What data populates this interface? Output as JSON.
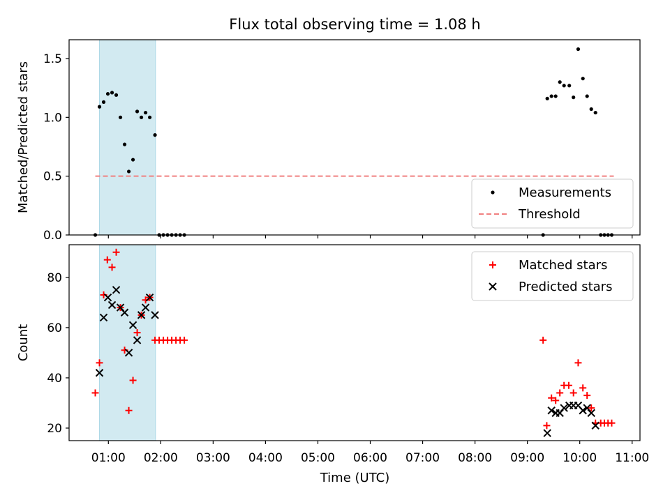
{
  "chart_data": {
    "title": "Flux total observing time = 1.08 h",
    "xlabel": "Time (UTC)",
    "x_unit": "hours UTC",
    "xlim": [
      0.25,
      11.15
    ],
    "xticks": [
      1,
      2,
      3,
      4,
      5,
      6,
      7,
      8,
      9,
      10,
      11
    ],
    "xtick_labels": [
      "01:00",
      "02:00",
      "03:00",
      "04:00",
      "05:00",
      "06:00",
      "07:00",
      "08:00",
      "09:00",
      "10:00",
      "11:00"
    ],
    "highlight_span": [
      0.83,
      1.9
    ],
    "highlight_color": "#add8e6",
    "panels": [
      {
        "type": "scatter",
        "ylabel": "Matched/Predicted stars",
        "ylim": [
          0,
          1.66
        ],
        "yticks": [
          0.0,
          0.5,
          1.0,
          1.5
        ],
        "ytick_labels": [
          "0.0",
          "0.5",
          "1.0",
          "1.5"
        ],
        "legend_position": "bottom-right",
        "threshold": {
          "name": "Threshold",
          "y": 0.5,
          "x": [
            0.75,
            10.65
          ],
          "color": "#f08080"
        },
        "series": [
          {
            "name": "Measurements",
            "marker": "dot",
            "color": "#000000",
            "points": [
              [
                0.75,
                0.0
              ],
              [
                0.83,
                1.09
              ],
              [
                0.91,
                1.13
              ],
              [
                0.99,
                1.2
              ],
              [
                1.07,
                1.21
              ],
              [
                1.15,
                1.19
              ],
              [
                1.23,
                1.0
              ],
              [
                1.31,
                0.77
              ],
              [
                1.39,
                0.54
              ],
              [
                1.47,
                0.64
              ],
              [
                1.55,
                1.05
              ],
              [
                1.63,
                1.0
              ],
              [
                1.71,
                1.04
              ],
              [
                1.79,
                1.0
              ],
              [
                1.89,
                0.85
              ],
              [
                1.97,
                0.0
              ],
              [
                2.05,
                0.0
              ],
              [
                2.13,
                0.0
              ],
              [
                2.21,
                0.0
              ],
              [
                2.29,
                0.0
              ],
              [
                2.37,
                0.0
              ],
              [
                2.45,
                0.0
              ],
              [
                9.3,
                0.0
              ],
              [
                9.38,
                1.16
              ],
              [
                9.46,
                1.18
              ],
              [
                9.54,
                1.18
              ],
              [
                9.62,
                1.3
              ],
              [
                9.7,
                1.27
              ],
              [
                9.8,
                1.27
              ],
              [
                9.88,
                1.17
              ],
              [
                9.97,
                1.58
              ],
              [
                10.06,
                1.33
              ],
              [
                10.14,
                1.18
              ],
              [
                10.22,
                1.07
              ],
              [
                10.3,
                1.04
              ],
              [
                10.4,
                0.0
              ],
              [
                10.47,
                0.0
              ],
              [
                10.54,
                0.0
              ],
              [
                10.61,
                0.0
              ]
            ]
          }
        ]
      },
      {
        "type": "scatter",
        "ylabel": "Count",
        "ylim": [
          15,
          93
        ],
        "yticks": [
          20,
          40,
          60,
          80
        ],
        "ytick_labels": [
          "20",
          "40",
          "60",
          "80"
        ],
        "legend_position": "top-right",
        "series": [
          {
            "name": "Matched stars",
            "marker": "plus",
            "color": "#ff0000",
            "points": [
              [
                0.75,
                34
              ],
              [
                0.83,
                46
              ],
              [
                0.91,
                73
              ],
              [
                0.98,
                87
              ],
              [
                1.07,
                84
              ],
              [
                1.15,
                90
              ],
              [
                1.23,
                68
              ],
              [
                1.31,
                51
              ],
              [
                1.39,
                27
              ],
              [
                1.47,
                39
              ],
              [
                1.55,
                58
              ],
              [
                1.63,
                65
              ],
              [
                1.71,
                71
              ],
              [
                1.79,
                72
              ],
              [
                1.89,
                55
              ],
              [
                1.97,
                55
              ],
              [
                2.05,
                55
              ],
              [
                2.13,
                55
              ],
              [
                2.21,
                55
              ],
              [
                2.29,
                55
              ],
              [
                2.37,
                55
              ],
              [
                2.45,
                55
              ],
              [
                9.3,
                55
              ],
              [
                9.37,
                21
              ],
              [
                9.46,
                32
              ],
              [
                9.54,
                31
              ],
              [
                9.62,
                34
              ],
              [
                9.7,
                37
              ],
              [
                9.79,
                37
              ],
              [
                9.88,
                34
              ],
              [
                9.97,
                46
              ],
              [
                10.06,
                36
              ],
              [
                10.14,
                33
              ],
              [
                10.22,
                28
              ],
              [
                10.3,
                22
              ],
              [
                10.4,
                22
              ],
              [
                10.47,
                22
              ],
              [
                10.54,
                22
              ],
              [
                10.61,
                22
              ]
            ]
          },
          {
            "name": "Predicted stars",
            "marker": "x",
            "color": "#000000",
            "points": [
              [
                0.83,
                42
              ],
              [
                0.91,
                64
              ],
              [
                0.99,
                72
              ],
              [
                1.07,
                69
              ],
              [
                1.15,
                75
              ],
              [
                1.23,
                68
              ],
              [
                1.31,
                66
              ],
              [
                1.39,
                50
              ],
              [
                1.47,
                61
              ],
              [
                1.55,
                55
              ],
              [
                1.63,
                65
              ],
              [
                1.71,
                68
              ],
              [
                1.79,
                72
              ],
              [
                1.89,
                65
              ],
              [
                9.38,
                18
              ],
              [
                9.46,
                27
              ],
              [
                9.54,
                26
              ],
              [
                9.62,
                26
              ],
              [
                9.7,
                28
              ],
              [
                9.8,
                29
              ],
              [
                9.88,
                29
              ],
              [
                9.97,
                29
              ],
              [
                10.06,
                27
              ],
              [
                10.14,
                28
              ],
              [
                10.22,
                26
              ],
              [
                10.3,
                21
              ]
            ]
          }
        ]
      }
    ]
  }
}
